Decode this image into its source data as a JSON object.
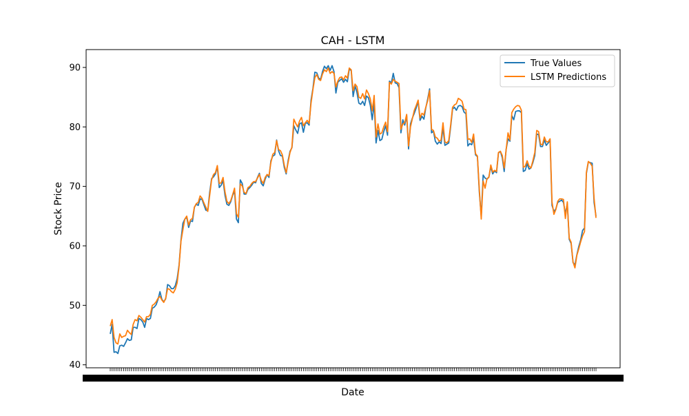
{
  "chart_data": {
    "type": "line",
    "title": "CAH - LSTM",
    "xlabel": "Date",
    "ylabel": "Stock Price",
    "x_tick_labels_overlapping": true,
    "ylim": [
      39.5,
      93
    ],
    "yticks": [
      40,
      50,
      60,
      70,
      80,
      90
    ],
    "grid": false,
    "legend": {
      "location": "upper right",
      "entries": [
        "True Values",
        "LSTM Predictions"
      ]
    },
    "colors": {
      "true": "#1f77b4",
      "pred": "#ff7f0e"
    },
    "series": [
      {
        "name": "True Values",
        "color": "#1f77b4",
        "values": [
          45.2,
          46.8,
          42.1,
          42.2,
          41.9,
          43.2,
          43.3,
          43.1,
          43.7,
          44.4,
          44.1,
          44.2,
          46.3,
          46.3,
          46.1,
          47.8,
          47.6,
          47.2,
          46.3,
          47.8,
          47.6,
          47.8,
          49.5,
          49.7,
          50.1,
          51.0,
          52.3,
          51.0,
          50.6,
          51.1,
          53.5,
          53.3,
          52.8,
          52.8,
          53.3,
          54.5,
          56.8,
          61.0,
          63.8,
          64.5,
          64.8,
          63.1,
          64.2,
          64.1,
          66.5,
          67.0,
          66.8,
          67.9,
          67.8,
          66.9,
          66.0,
          65.9,
          69.0,
          71.3,
          71.6,
          72.1,
          73.3,
          69.8,
          70.2,
          71.0,
          68.5,
          67.0,
          66.8,
          67.4,
          68.5,
          69.2,
          64.5,
          63.9,
          71.1,
          70.5,
          68.7,
          68.7,
          69.5,
          69.8,
          70.2,
          70.7,
          70.6,
          71.5,
          72.2,
          70.5,
          70.1,
          71.2,
          72.0,
          71.5,
          74.3,
          75.1,
          75.3,
          77.8,
          76.0,
          75.2,
          75.1,
          73.2,
          72.1,
          74.3,
          75.9,
          76.5,
          80.2,
          79.5,
          78.9,
          80.5,
          80.7,
          79.1,
          80.6,
          80.7,
          80.3,
          84.5,
          86.5,
          89.2,
          89.1,
          88.2,
          88.0,
          89.3,
          90.2,
          89.8,
          90.3,
          89.5,
          90.3,
          89.3,
          85.7,
          87.5,
          87.8,
          88.1,
          87.5,
          88.0,
          87.6,
          89.7,
          89.5,
          85.1,
          86.9,
          85.8,
          84.0,
          83.8,
          84.3,
          83.6,
          85.2,
          84.9,
          83.6,
          81.2,
          84.0,
          77.3,
          79.4,
          77.7,
          77.9,
          79.2,
          80.2,
          78.6,
          87.7,
          87.4,
          89.0,
          87.4,
          87.3,
          86.6,
          79.0,
          81.2,
          80.3,
          81.9,
          76.3,
          80.5,
          81.5,
          82.3,
          83.2,
          84.3,
          81.1,
          81.8,
          81.3,
          83.2,
          84.7,
          86.4,
          79.0,
          79.3,
          77.6,
          77.1,
          77.5,
          77.2,
          79.9,
          76.9,
          77.1,
          77.3,
          80.0,
          83.0,
          83.3,
          82.8,
          83.5,
          83.6,
          83.4,
          82.5,
          82.2,
          76.8,
          77.2,
          77.0,
          78.0,
          75.3,
          75.0,
          69.0,
          65.0,
          71.9,
          71.4,
          71.2,
          71.6,
          73.3,
          72.1,
          72.6,
          72.3,
          75.6,
          75.9,
          74.8,
          72.5,
          76.2,
          78.0,
          77.6,
          81.9,
          81.2,
          82.6,
          82.7,
          82.7,
          82.4,
          72.5,
          72.7,
          73.8,
          72.9,
          73.1,
          74.0,
          75.2,
          78.8,
          78.7,
          76.7,
          76.7,
          77.8,
          76.9,
          77.3,
          77.7,
          66.8,
          65.8,
          66.2,
          67.3,
          67.5,
          67.7,
          67.3,
          65.4,
          67.1,
          61.1,
          60.4,
          57.2,
          56.8,
          58.5,
          59.9,
          61.0,
          62.6,
          63.0,
          72.2,
          74.1,
          74.0,
          73.9,
          67.3,
          65.0
        ]
      },
      {
        "name": "LSTM Predictions",
        "color": "#ff7f0e",
        "values": [
          46.5,
          47.6,
          44.6,
          43.7,
          43.5,
          45.2,
          44.6,
          44.8,
          44.9,
          45.8,
          45.4,
          45.1,
          46.8,
          47.6,
          47.4,
          48.3,
          48.0,
          47.6,
          47.2,
          48.1,
          48.1,
          48.5,
          50.0,
          50.2,
          50.6,
          51.2,
          51.5,
          50.9,
          50.5,
          51.2,
          52.8,
          52.7,
          52.3,
          52.1,
          52.7,
          53.8,
          56.6,
          60.8,
          62.7,
          64.5,
          65.0,
          63.5,
          64.4,
          64.6,
          66.5,
          67.1,
          67.3,
          68.4,
          68.0,
          67.2,
          66.5,
          65.8,
          68.5,
          71.1,
          72.0,
          72.3,
          73.5,
          70.5,
          70.6,
          71.5,
          69.1,
          67.5,
          67.1,
          67.6,
          68.6,
          69.7,
          65.4,
          64.8,
          70.4,
          70.1,
          69.0,
          68.8,
          69.8,
          70.0,
          70.5,
          70.8,
          70.8,
          71.4,
          72.0,
          71.0,
          70.5,
          71.5,
          72.0,
          71.8,
          74.0,
          75.4,
          75.7,
          77.7,
          76.2,
          76.0,
          75.3,
          73.6,
          72.3,
          74.0,
          75.7,
          76.6,
          81.3,
          80.6,
          80.0,
          81.0,
          81.6,
          80.2,
          80.7,
          81.1,
          80.6,
          84.0,
          86.3,
          88.3,
          88.8,
          88.0,
          87.8,
          88.9,
          89.6,
          89.3,
          89.9,
          89.0,
          89.3,
          89.0,
          86.7,
          87.7,
          88.3,
          88.4,
          87.9,
          88.6,
          88.2,
          89.9,
          89.6,
          86.1,
          87.2,
          86.8,
          85.0,
          84.8,
          85.6,
          84.7,
          86.2,
          85.6,
          84.7,
          82.7,
          85.3,
          78.3,
          80.5,
          78.8,
          79.0,
          80.0,
          80.8,
          79.2,
          87.5,
          87.2,
          88.0,
          87.7,
          87.5,
          87.3,
          79.6,
          80.5,
          80.7,
          82.1,
          76.8,
          80.0,
          81.4,
          82.8,
          83.6,
          84.5,
          81.5,
          82.3,
          82.0,
          83.3,
          84.4,
          86.1,
          79.6,
          79.4,
          78.3,
          78.1,
          77.6,
          77.8,
          80.7,
          77.5,
          77.3,
          77.7,
          80.3,
          83.3,
          83.7,
          83.9,
          84.8,
          84.6,
          84.3,
          83.0,
          82.9,
          77.9,
          78.0,
          77.4,
          78.8,
          75.5,
          75.1,
          69.5,
          64.5,
          70.9,
          69.7,
          71.3,
          71.5,
          73.6,
          72.4,
          72.7,
          72.5,
          75.7,
          75.9,
          75.2,
          73.1,
          76.1,
          79.0,
          77.8,
          82.4,
          83.0,
          83.4,
          83.6,
          83.5,
          82.8,
          73.2,
          73.4,
          74.3,
          73.4,
          73.1,
          74.3,
          75.7,
          79.4,
          79.2,
          77.1,
          77.0,
          78.3,
          77.5,
          77.5,
          78.0,
          67.4,
          65.3,
          66.1,
          67.5,
          67.9,
          67.9,
          67.8,
          64.6,
          67.4,
          61.3,
          60.6,
          57.3,
          56.3,
          58.4,
          59.5,
          60.7,
          61.7,
          62.4,
          72.4,
          74.2,
          73.9,
          73.4,
          68.0,
          64.7
        ]
      }
    ]
  }
}
